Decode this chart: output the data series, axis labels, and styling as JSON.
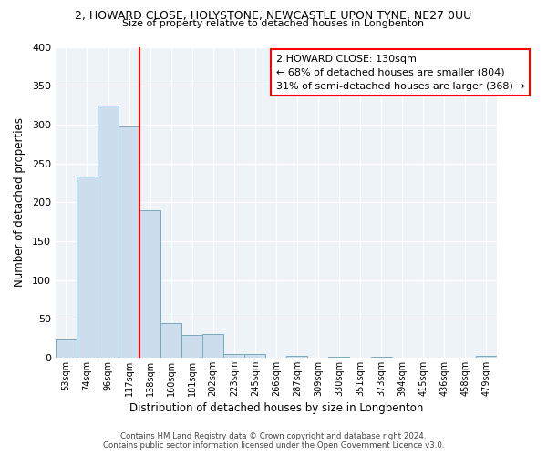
{
  "title1": "2, HOWARD CLOSE, HOLYSTONE, NEWCASTLE UPON TYNE, NE27 0UU",
  "title2": "Size of property relative to detached houses in Longbenton",
  "xlabel": "Distribution of detached houses by size in Longbenton",
  "ylabel": "Number of detached properties",
  "bin_labels": [
    "53sqm",
    "74sqm",
    "96sqm",
    "117sqm",
    "138sqm",
    "160sqm",
    "181sqm",
    "202sqm",
    "223sqm",
    "245sqm",
    "266sqm",
    "287sqm",
    "309sqm",
    "330sqm",
    "351sqm",
    "373sqm",
    "394sqm",
    "415sqm",
    "436sqm",
    "458sqm",
    "479sqm"
  ],
  "bar_heights": [
    23,
    233,
    325,
    298,
    190,
    44,
    29,
    30,
    5,
    5,
    0,
    2,
    0,
    1,
    0,
    1,
    0,
    0,
    0,
    0,
    2
  ],
  "bar_color": "#ccdded",
  "bar_edge_color": "#7aaabb",
  "vline_color": "red",
  "annotation_title": "2 HOWARD CLOSE: 130sqm",
  "annotation_line1": "← 68% of detached houses are smaller (804)",
  "annotation_line2": "31% of semi-detached houses are larger (368) →",
  "annotation_box_color": "white",
  "annotation_box_edge": "red",
  "ylim": [
    0,
    400
  ],
  "yticks": [
    0,
    50,
    100,
    150,
    200,
    250,
    300,
    350,
    400
  ],
  "footer1": "Contains HM Land Registry data © Crown copyright and database right 2024.",
  "footer2": "Contains public sector information licensed under the Open Government Licence v3.0.",
  "bg_color": "#ffffff",
  "plot_bg_color": "#eef3f8"
}
